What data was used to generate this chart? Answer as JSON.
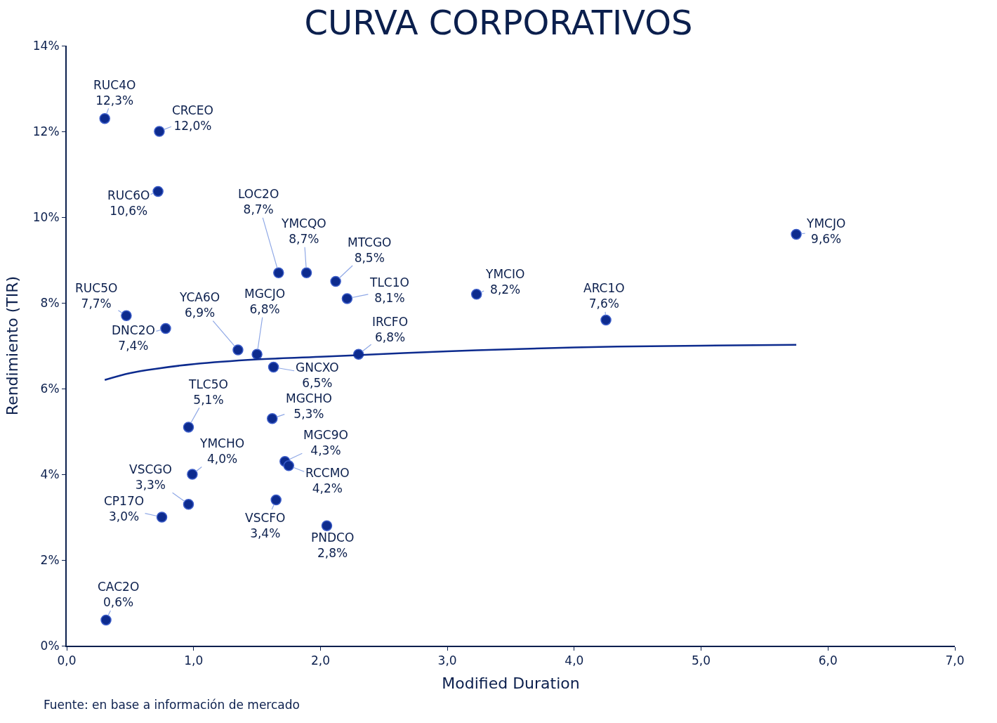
{
  "chart_data": {
    "type": "scatter",
    "title": "CURVA CORPORATIVOS",
    "xlabel": "Modified Duration",
    "ylabel": "Rendimiento (TIR)",
    "xlim": [
      0,
      7
    ],
    "xticks": [
      {
        "value": 0,
        "label": "0,0"
      },
      {
        "value": 1,
        "label": "1,0"
      },
      {
        "value": 2,
        "label": "2,0"
      },
      {
        "value": 3,
        "label": "3,0"
      },
      {
        "value": 4,
        "label": "4,0"
      },
      {
        "value": 5,
        "label": "5,0"
      },
      {
        "value": 6,
        "label": "6,0"
      },
      {
        "value": 7,
        "label": "7,0"
      }
    ],
    "ylim": [
      0,
      14
    ],
    "yticks": [
      {
        "value": 0,
        "label": "0%"
      },
      {
        "value": 2,
        "label": "2%"
      },
      {
        "value": 4,
        "label": "4%"
      },
      {
        "value": 6,
        "label": "6%"
      },
      {
        "value": 8,
        "label": "8%"
      },
      {
        "value": 10,
        "label": "10%"
      },
      {
        "value": 12,
        "label": "12%"
      },
      {
        "value": 14,
        "label": "14%"
      }
    ],
    "series": [
      {
        "marker": "circle",
        "color": "#0d2b8e",
        "x": [
          0.3,
          0.73,
          0.72,
          1.67,
          1.89,
          2.12,
          2.21,
          3.23,
          4.25,
          5.75,
          0.47,
          0.78,
          1.35,
          1.5,
          2.3,
          1.63,
          0.96,
          1.62,
          1.72,
          1.75,
          0.99,
          0.96,
          0.75,
          1.65,
          2.05,
          0.31
        ],
        "values": [
          12.3,
          12.0,
          10.6,
          8.7,
          8.7,
          8.5,
          8.1,
          8.2,
          7.6,
          9.6,
          7.7,
          7.4,
          6.9,
          6.8,
          6.8,
          6.5,
          5.1,
          5.3,
          4.3,
          4.2,
          4.0,
          3.3,
          3.0,
          3.4,
          2.8,
          0.6
        ]
      },
      {
        "type": "line",
        "color": "#0d2b8e",
        "line_style": "solid",
        "marker": "none",
        "x": [
          0.3,
          0.5,
          0.7,
          1.0,
          1.5,
          2.0,
          3.0,
          4.0,
          5.0,
          5.75
        ],
        "values": [
          6.2,
          6.36,
          6.46,
          6.57,
          6.68,
          6.74,
          6.87,
          6.96,
          7.0,
          7.02
        ]
      }
    ],
    "annotations": [
      {
        "text": "RUC4O\n12,3%",
        "x": 0.3,
        "y": 12.3
      },
      {
        "text": "CRCEO\n12,0%",
        "x": 0.73,
        "y": 12.0
      },
      {
        "text": "RUC6O\n10,6%",
        "x": 0.72,
        "y": 10.6
      },
      {
        "text": "LOC2O\n8,7%",
        "x": 1.67,
        "y": 8.7
      },
      {
        "text": "YMCQO\n8,7%",
        "x": 1.89,
        "y": 8.7
      },
      {
        "text": "MTCGO\n8,5%",
        "x": 2.12,
        "y": 8.5
      },
      {
        "text": "TLC1O\n8,1%",
        "x": 2.21,
        "y": 8.1
      },
      {
        "text": "YMCIO\n8,2%",
        "x": 3.23,
        "y": 8.2
      },
      {
        "text": "ARC1O\n7,6%",
        "x": 4.25,
        "y": 7.6
      },
      {
        "text": "YMCJO\n9,6%",
        "x": 5.75,
        "y": 9.6
      },
      {
        "text": "RUC5O\n7,7%",
        "x": 0.47,
        "y": 7.7
      },
      {
        "text": "DNC2O\n7,4%",
        "x": 0.78,
        "y": 7.4
      },
      {
        "text": "YCA6O\n6,9%",
        "x": 1.35,
        "y": 6.9
      },
      {
        "text": "MGCJO\n6,8%",
        "x": 1.5,
        "y": 6.8
      },
      {
        "text": "IRCFO\n6,8%",
        "x": 2.3,
        "y": 6.8
      },
      {
        "text": "GNCXO\n6,5%",
        "x": 1.63,
        "y": 6.5
      },
      {
        "text": "TLC5O\n5,1%",
        "x": 0.96,
        "y": 5.1
      },
      {
        "text": "MGCHO\n5,3%",
        "x": 1.62,
        "y": 5.3
      },
      {
        "text": "MGC9O\n4,3%",
        "x": 1.72,
        "y": 4.3
      },
      {
        "text": "RCCMO\n4,2%",
        "x": 1.75,
        "y": 4.2
      },
      {
        "text": "YMCHO\n4,0%",
        "x": 0.99,
        "y": 4.0
      },
      {
        "text": "VSCGO\n3,3%",
        "x": 0.96,
        "y": 3.3
      },
      {
        "text": "CP17O\n3,0%",
        "x": 0.75,
        "y": 3.0
      },
      {
        "text": "VSCFO\n3,4%",
        "x": 1.65,
        "y": 3.4
      },
      {
        "text": "PNDCO\n2,8%",
        "x": 2.05,
        "y": 2.8
      },
      {
        "text": "CAC2O\n0,6%",
        "x": 0.31,
        "y": 0.6
      },
      "Fuente: en base a información de mercado"
    ]
  }
}
